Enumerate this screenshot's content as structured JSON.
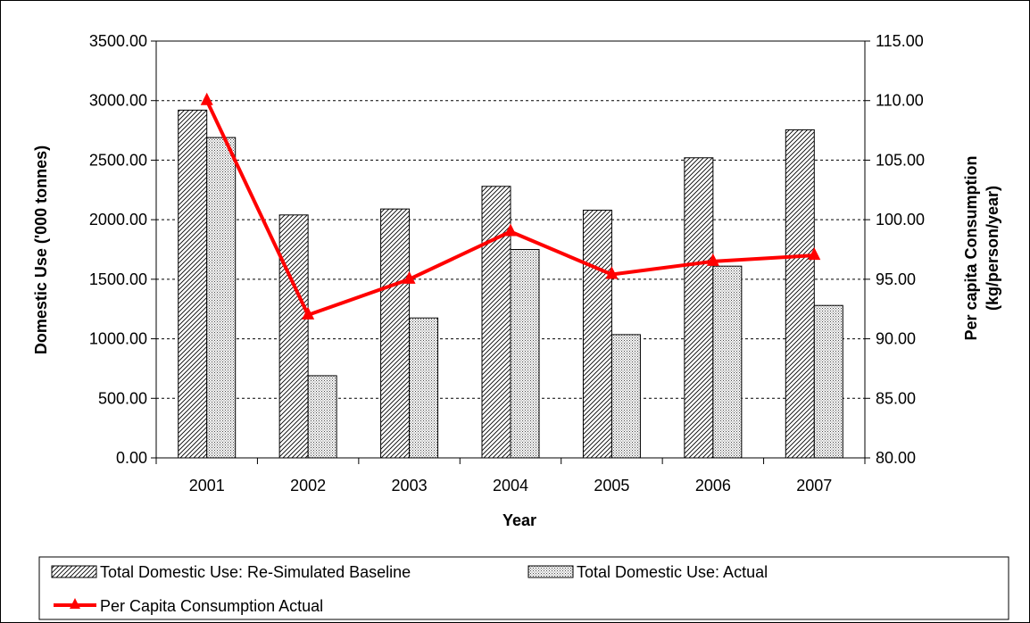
{
  "chart_data": {
    "type": "bar",
    "categories": [
      "2001",
      "2002",
      "2003",
      "2004",
      "2005",
      "2006",
      "2007"
    ],
    "series": [
      {
        "name": "Total  Domestic Use: Re-Simulated Baseline",
        "kind": "bar",
        "axis": "left",
        "pattern": "diagonal-hatch",
        "values": [
          2920,
          2040,
          2090,
          2280,
          2080,
          2520,
          2755
        ]
      },
      {
        "name": "Total  Domestic Use: Actual",
        "kind": "bar",
        "axis": "left",
        "pattern": "dotted",
        "values": [
          2690,
          690,
          1175,
          1750,
          1035,
          1610,
          1280
        ]
      },
      {
        "name": "Per Capita Consumption Actual",
        "kind": "line",
        "axis": "right",
        "marker": "triangle",
        "color": "#ff0000",
        "values": [
          110.0,
          92.0,
          95.0,
          99.0,
          95.4,
          96.5,
          97.0
        ]
      }
    ],
    "xlabel": "Year",
    "ylabel": "Domestic Use ('000 tonnes)",
    "y2label_lines": [
      "Per capita Consumption",
      "(kg/person/year)"
    ],
    "ylim": [
      0,
      3500
    ],
    "y2lim": [
      80,
      115
    ],
    "yticks": [
      "0.00",
      "500.00",
      "1000.00",
      "1500.00",
      "2000.00",
      "2500.00",
      "3000.00",
      "3500.00"
    ],
    "y2ticks": [
      "80.00",
      "85.00",
      "90.00",
      "95.00",
      "100.00",
      "105.00",
      "110.00",
      "115.00"
    ],
    "grid": "horizontal-dashed",
    "legend_position": "bottom"
  }
}
